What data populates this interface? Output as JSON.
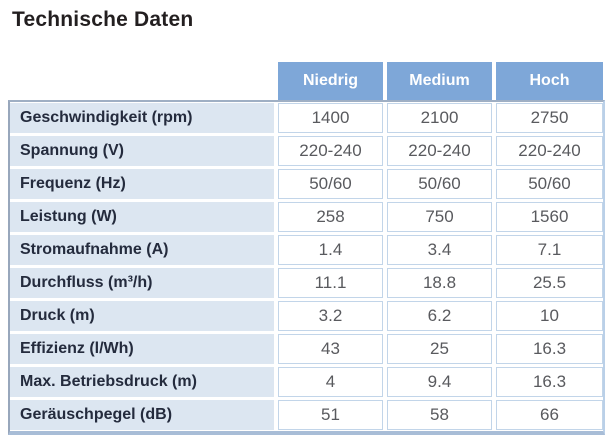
{
  "page": {
    "title": "Technische Daten"
  },
  "table": {
    "columns": [
      "Niedrig",
      "Medium",
      "Hoch"
    ],
    "rows": [
      {
        "label": "Geschwindigkeit (rpm)",
        "values": [
          "1400",
          "2100",
          "2750"
        ]
      },
      {
        "label": "Spannung (V)",
        "values": [
          "220-240",
          "220-240",
          "220-240"
        ]
      },
      {
        "label": "Frequenz (Hz)",
        "values": [
          "50/60",
          "50/60",
          "50/60"
        ]
      },
      {
        "label": "Leistung (W)",
        "values": [
          "258",
          "750",
          "1560"
        ]
      },
      {
        "label": "Stromaufnahme (A)",
        "values": [
          "1.4",
          "3.4",
          "7.1"
        ]
      },
      {
        "label": "Durchfluss (m³/h)",
        "values": [
          "11.1",
          "18.8",
          "25.5"
        ]
      },
      {
        "label": "Druck (m)",
        "values": [
          "3.2",
          "6.2",
          "10"
        ]
      },
      {
        "label": "Effizienz (l/Wh)",
        "values": [
          "43",
          "25",
          "16.3"
        ]
      },
      {
        "label": "Max. Betriebsdruck (m)",
        "values": [
          "4",
          "9.4",
          "16.3"
        ]
      },
      {
        "label": "Geräuschpegel (dB)",
        "values": [
          "51",
          "58",
          "66"
        ]
      }
    ],
    "colors": {
      "header_bg": "#7ea7d8",
      "header_text": "#ffffff",
      "label_bg": "#dce6f1",
      "label_text": "#242b3d",
      "value_text": "#595a5e",
      "cell_border": "#c2d5e9",
      "outer_border_left": "#98a7bc",
      "outer_border_bottom": "#a8bdd7",
      "outer_border_right": "#bad0e8",
      "title_text": "#231f20"
    }
  }
}
